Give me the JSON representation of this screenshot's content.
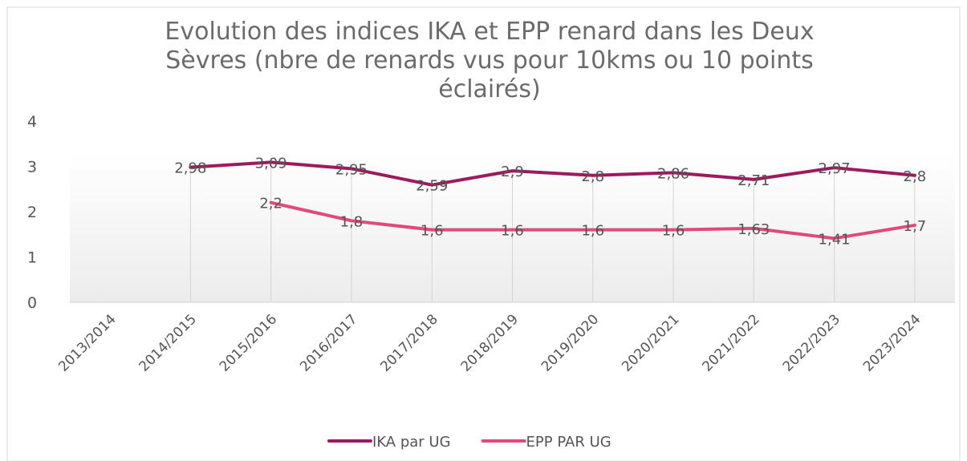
{
  "chart_data": {
    "type": "line",
    "title": "Evolution des indices IKA et EPP renard dans les Deux Sèvres (nbre de renards vus pour 10kms ou 10 points éclairés)",
    "categories": [
      "2013/2014",
      "2014/2015",
      "2015/2016",
      "2016/2017",
      "2017/2018",
      "2018/2019",
      "2019/2020",
      "2020/2021",
      "2021/2022",
      "2022/2023",
      "2023/2024"
    ],
    "series": [
      {
        "name": "IKA par UG",
        "color": "#9e1a5e",
        "values": [
          null,
          2.98,
          3.09,
          2.95,
          2.59,
          2.9,
          2.8,
          2.86,
          2.71,
          2.97,
          2.8
        ],
        "value_labels": [
          null,
          "2,98",
          "3,09",
          "2,95",
          "2,59",
          "2,9",
          "2,8",
          "2,86",
          "2,71",
          "2,97",
          "2,8"
        ]
      },
      {
        "name": "EPP PAR UG",
        "color": "#e2497b",
        "values": [
          null,
          null,
          2.2,
          1.8,
          1.6,
          1.6,
          1.6,
          1.6,
          1.63,
          1.41,
          1.7
        ],
        "value_labels": [
          null,
          null,
          "2,2",
          "1,8",
          "1,6",
          "1,6",
          "1,6",
          "1,6",
          "1,63",
          "1,41",
          "1,7"
        ]
      }
    ],
    "ylim": [
      0,
      4
    ],
    "yticks": [
      0,
      1,
      2,
      3,
      4
    ],
    "legend": "bottom"
  }
}
